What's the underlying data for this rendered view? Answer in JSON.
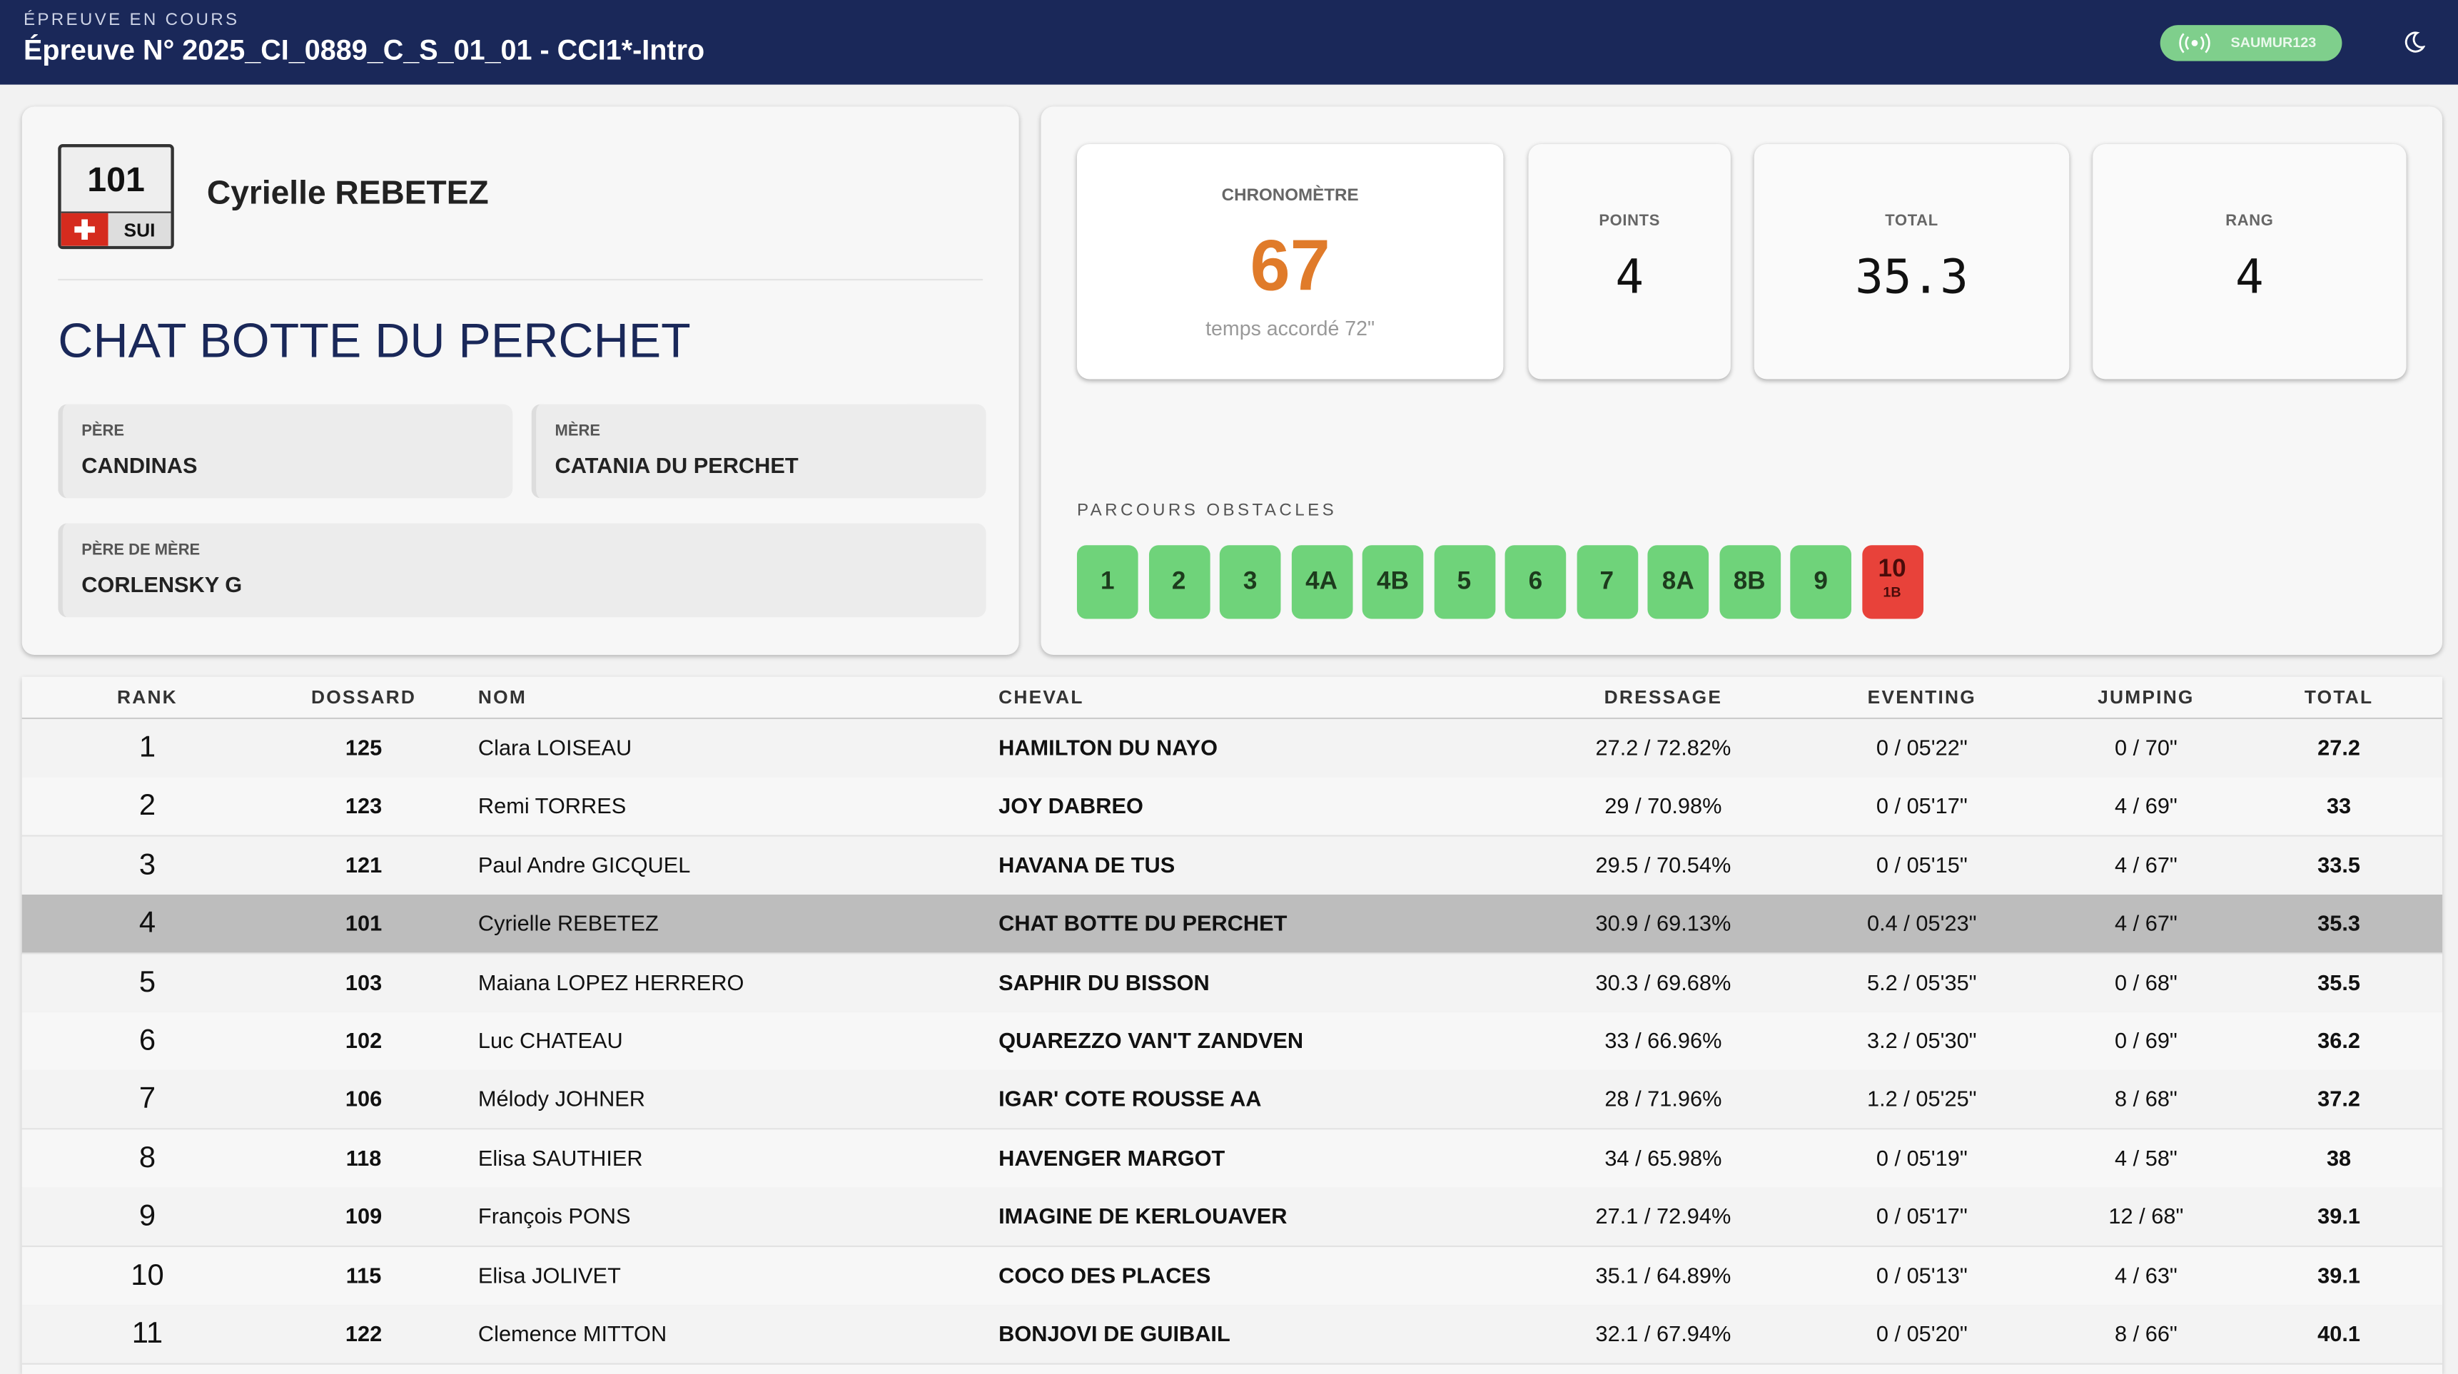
{
  "header": {
    "label": "ÉPREUVE EN COURS",
    "title": "Épreuve N° 2025_CI_0889_C_S_01_01 - CCI1*-Intro",
    "status": "SAUMUR123"
  },
  "rider": {
    "bib": "101",
    "nation": "SUI",
    "name": "Cyrielle REBETEZ",
    "horse": "CHAT BOTTE DU PERCHET",
    "pedigree": [
      {
        "label": "PÈRE",
        "value": "CANDINAS"
      },
      {
        "label": "MÈRE",
        "value": "CATANIA DU PERCHET"
      },
      {
        "label": "PÈRE DE MÈRE",
        "value": "CORLENSKY G"
      }
    ]
  },
  "stats": {
    "chrono": {
      "label": "CHRONOMÈTRE",
      "value": 67,
      "note": "temps accordé 72\""
    },
    "others": [
      {
        "label": "POINTS",
        "value": 4
      },
      {
        "label": "TOTAL",
        "value": 35.3
      },
      {
        "label": "RANG",
        "value": 4
      }
    ]
  },
  "obstacles": {
    "title": "PARCOURS OBSTACLES",
    "items": [
      {
        "label": "1",
        "status": "ok"
      },
      {
        "label": "2",
        "status": "ok"
      },
      {
        "label": "3",
        "status": "ok"
      },
      {
        "label": "4A",
        "status": "ok"
      },
      {
        "label": "4B",
        "status": "ok"
      },
      {
        "label": "5",
        "status": "ok"
      },
      {
        "label": "6",
        "status": "ok"
      },
      {
        "label": "7",
        "status": "ok"
      },
      {
        "label": "8A",
        "status": "ok"
      },
      {
        "label": "8B",
        "status": "ok"
      },
      {
        "label": "9",
        "status": "ok"
      },
      {
        "label": "10",
        "sub": "1B",
        "status": "fault"
      }
    ]
  },
  "table": {
    "columns": [
      "RANK",
      "DOSSARD",
      "NOM",
      "CHEVAL",
      "DRESSAGE",
      "EVENTING",
      "JUMPING",
      "TOTAL"
    ],
    "rows": [
      [
        1,
        125,
        "Clara LOISEAU",
        "HAMILTON DU NAYO",
        "27.2 / 72.82%",
        "0 / 05'22\"",
        "0 / 70\"",
        27.2
      ],
      [
        2,
        123,
        "Remi TORRES",
        "JOY DABREO",
        "29 / 70.98%",
        "0 / 05'17\"",
        "4 / 69\"",
        33
      ],
      [
        3,
        121,
        "Paul Andre GICQUEL",
        "HAVANA DE TUS",
        "29.5 / 70.54%",
        "0 / 05'15\"",
        "4 / 67\"",
        33.5
      ],
      [
        4,
        101,
        "Cyrielle REBETEZ",
        "CHAT BOTTE DU PERCHET",
        "30.9 / 69.13%",
        "0.4 / 05'23\"",
        "4 / 67\"",
        35.3
      ],
      [
        5,
        103,
        "Maiana LOPEZ HERRERO",
        "SAPHIR DU BISSON",
        "30.3 / 69.68%",
        "5.2 / 05'35\"",
        "0 / 68\"",
        35.5
      ],
      [
        6,
        102,
        "Luc CHATEAU",
        "QUAREZZO VAN'T ZANDVEN",
        "33 / 66.96%",
        "3.2 / 05'30\"",
        "0 / 69\"",
        36.2
      ],
      [
        7,
        106,
        "Mélody JOHNER",
        "IGAR' COTE ROUSSE AA",
        "28 / 71.96%",
        "1.2 / 05'25\"",
        "8 / 68\"",
        37.2
      ],
      [
        8,
        118,
        "Elisa SAUTHIER",
        "HAVENGER MARGOT",
        "34 / 65.98%",
        "0 / 05'19\"",
        "4 / 58\"",
        38
      ],
      [
        9,
        109,
        "François PONS",
        "IMAGINE DE KERLOUAVER",
        "27.1 / 72.94%",
        "0 / 05'17\"",
        "12 / 68\"",
        39.1
      ],
      [
        10,
        115,
        "Elisa JOLIVET",
        "COCO DES PLACES",
        "35.1 / 64.89%",
        "0 / 05'13\"",
        "4 / 63\"",
        39.1
      ],
      [
        11,
        122,
        "Clemence MITTON",
        "BONJOVI DE GUIBAIL",
        "32.1 / 67.94%",
        "0 / 05'20\"",
        "8 / 66\"",
        40.1
      ]
    ]
  }
}
